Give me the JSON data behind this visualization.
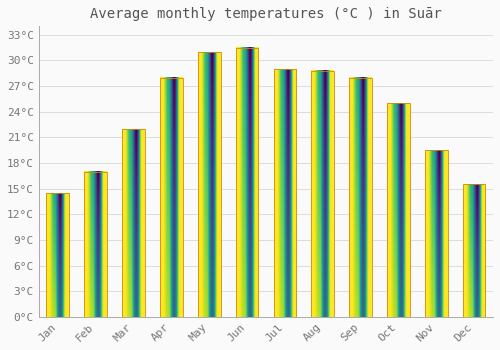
{
  "title": "Average monthly temperatures (°C ) in Suār",
  "months": [
    "Jan",
    "Feb",
    "Mar",
    "Apr",
    "May",
    "Jun",
    "Jul",
    "Aug",
    "Sep",
    "Oct",
    "Nov",
    "Dec"
  ],
  "values": [
    14.5,
    17.0,
    22.0,
    28.0,
    31.0,
    31.5,
    29.0,
    28.8,
    28.0,
    25.0,
    19.5,
    15.5
  ],
  "bar_color_top": "#FFD966",
  "bar_color_bottom": "#FFA500",
  "bar_edge_color": "#D4870A",
  "background_color": "#FAFAFA",
  "grid_color": "#DDDDDD",
  "text_color": "#777777",
  "ylim": [
    0,
    34
  ],
  "yticks": [
    0,
    3,
    6,
    9,
    12,
    15,
    18,
    21,
    24,
    27,
    30,
    33
  ],
  "title_fontsize": 10,
  "tick_fontsize": 8,
  "bar_width": 0.6
}
